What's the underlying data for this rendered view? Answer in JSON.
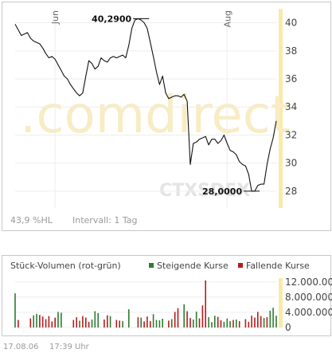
{
  "watermark": {
    "text": ".comdirect",
    "code": "CTXSDEX",
    "color": "#f8ecc4",
    "code_color": "#e4e4e4"
  },
  "price_panel": {
    "footer_left": "43,9 %HL",
    "footer_interval": "Intervall: 1 Tag",
    "accent_color": "#fbe9a8"
  },
  "volume_panel": {
    "title": "Stück-Volumen (rot-grün)",
    "legend_rising": "Steigende Kurse",
    "legend_falling": "Fallende Kurse",
    "rising_color": "#2e7d32",
    "falling_color": "#b71c1c"
  },
  "footer": {
    "date": "17.08.06",
    "time": "17:39 Uhr"
  },
  "chart_data": [
    {
      "type": "line",
      "title": "",
      "x_ticks": [
        {
          "label": "Jun",
          "index": 13
        },
        {
          "label": "Aug",
          "index": 69
        }
      ],
      "y_ticks": [
        "40",
        "38",
        "36",
        "34",
        "32",
        "30",
        "28"
      ],
      "ylim": [
        26.8,
        41.0
      ],
      "grid": true,
      "annotations": [
        {
          "label": "40,2900",
          "index": 41,
          "value": 40.29
        },
        {
          "label": "28,0000",
          "index": 77,
          "value": 28.0
        }
      ],
      "values": [
        39.9,
        39.5,
        39.1,
        39.2,
        39.3,
        38.9,
        38.7,
        38.6,
        38.5,
        38.2,
        37.8,
        37.5,
        37.6,
        37.4,
        37.0,
        36.6,
        36.2,
        36.0,
        35.6,
        35.3,
        35.0,
        34.8,
        35.0,
        36.2,
        37.3,
        37.1,
        36.7,
        36.9,
        37.5,
        37.3,
        37.2,
        37.5,
        37.6,
        37.5,
        37.6,
        37.7,
        37.5,
        38.4,
        39.6,
        40.2,
        40.29,
        40.2,
        40.0,
        39.6,
        38.6,
        37.6,
        36.5,
        35.6,
        36.2,
        35.0,
        34.6,
        34.7,
        34.8,
        34.8,
        34.7,
        34.9,
        34.4,
        29.9,
        31.4,
        31.5,
        31.7,
        31.8,
        31.9,
        31.3,
        31.7,
        31.7,
        31.4,
        31.6,
        32.0,
        31.4,
        30.9,
        30.8,
        30.6,
        30.1,
        29.9,
        29.8,
        29.2,
        28.0,
        28.0,
        28.4,
        28.5,
        28.5,
        29.9,
        31.0,
        31.8,
        33.0
      ]
    },
    {
      "type": "bar",
      "title": "Stück-Volumen (rot-grün)",
      "y_ticks": [
        "12.000.000",
        "8.000.000",
        "4.000.000",
        "0"
      ],
      "ylim": [
        0,
        13000000
      ],
      "series": [
        {
          "name": "Steigende Kurse",
          "index": [
            0,
            6,
            7,
            14,
            15,
            21,
            25,
            26,
            27,
            31,
            35,
            37,
            41,
            45,
            46,
            47,
            48,
            51,
            55,
            58,
            59,
            63,
            64,
            65,
            68,
            69,
            70,
            72,
            81,
            83,
            84,
            85
          ],
          "values": [
            9000000,
            3200000,
            3600000,
            4100000,
            3900000,
            1800000,
            2100000,
            4300000,
            3800000,
            3000000,
            1700000,
            4800000,
            2600000,
            3500000,
            2000000,
            1900000,
            2300000,
            2200000,
            6100000,
            2100000,
            4200000,
            2700000,
            1400000,
            3100000,
            1500000,
            2400000,
            1700000,
            2100000,
            2500000,
            4400000,
            5200000,
            3100000
          ]
        },
        {
          "name": "Fallende Kurse",
          "index": [
            1,
            5,
            8,
            9,
            10,
            11,
            12,
            13,
            19,
            20,
            22,
            23,
            24,
            29,
            30,
            33,
            34,
            40,
            42,
            43,
            44,
            50,
            52,
            53,
            56,
            57,
            60,
            61,
            62,
            66,
            67,
            71,
            73,
            75,
            76,
            77,
            78,
            79,
            80,
            82
          ],
          "values": [
            2000000,
            2400000,
            3300000,
            2900000,
            2200000,
            3000000,
            1600000,
            2600000,
            2000000,
            2700000,
            3000000,
            2600000,
            1500000,
            2100000,
            3200000,
            2000000,
            1800000,
            2700000,
            1600000,
            2900000,
            1700000,
            1800000,
            4100000,
            5100000,
            4300000,
            2500000,
            2400000,
            5800000,
            12400000,
            2800000,
            1900000,
            2000000,
            1700000,
            2200000,
            1500000,
            3100000,
            2600000,
            4100000,
            3000000,
            2700000
          ]
        }
      ]
    }
  ]
}
